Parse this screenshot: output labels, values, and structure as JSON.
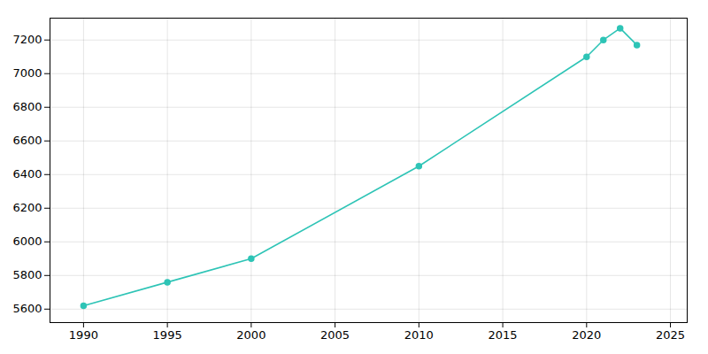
{
  "chart_data": {
    "type": "line",
    "x": [
      1990,
      1995,
      2000,
      2010,
      2020,
      2021,
      2022,
      2023
    ],
    "values": [
      5620,
      5760,
      5900,
      6450,
      7100,
      7200,
      7270,
      7170
    ],
    "color": "#2ec4b6",
    "marker": "circle",
    "xlim": [
      1988,
      2026
    ],
    "ylim": [
      5520,
      7330
    ],
    "xticks": [
      1990,
      1995,
      2000,
      2005,
      2010,
      2015,
      2020,
      2025
    ],
    "yticks": [
      5600,
      5800,
      6000,
      6200,
      6400,
      6600,
      6800,
      7000,
      7200
    ],
    "grid": true
  }
}
